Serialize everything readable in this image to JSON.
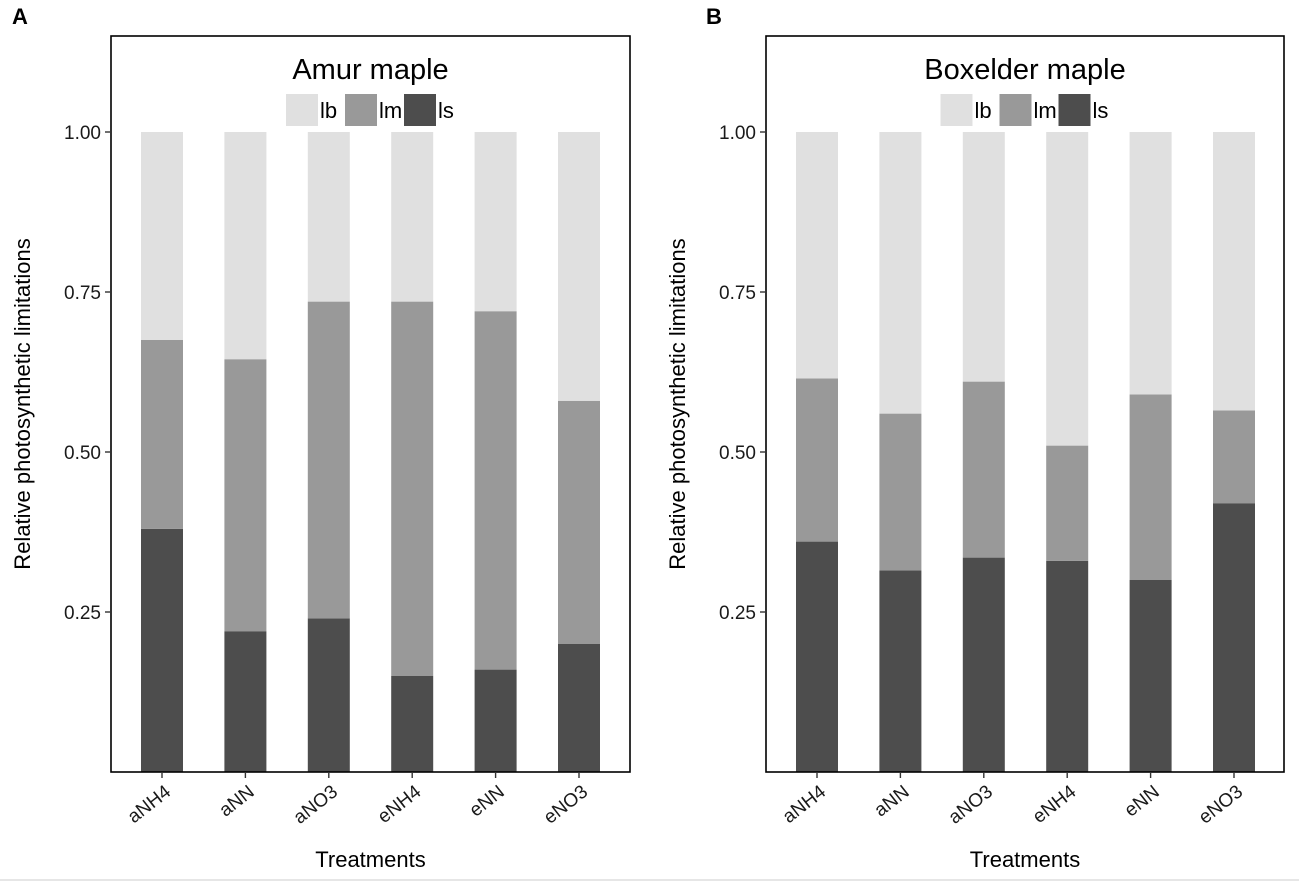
{
  "chart_data": [
    {
      "panel": "A",
      "type": "bar",
      "stacked": true,
      "title": "Amur maple",
      "xlabel": "Treatments",
      "ylabel": "Relative photosynthetic limitations",
      "ylim": [
        0,
        1.15
      ],
      "yticks": [
        "0.25",
        "0.50",
        "0.75",
        "1.00"
      ],
      "categories": [
        "aNH4",
        "aNN",
        "aNO3",
        "eNH4",
        "eNN",
        "eNO3"
      ],
      "series": [
        {
          "name": "ls",
          "color": "#4d4d4d",
          "values": [
            0.38,
            0.22,
            0.24,
            0.15,
            0.16,
            0.2
          ]
        },
        {
          "name": "lm",
          "color": "#999999",
          "values": [
            0.295,
            0.425,
            0.495,
            0.585,
            0.56,
            0.38
          ]
        },
        {
          "name": "lb",
          "color": "#e0e0e0",
          "values": [
            0.325,
            0.355,
            0.265,
            0.265,
            0.28,
            0.42
          ]
        }
      ],
      "legend": [
        "lb",
        "lm",
        "ls"
      ],
      "legend_position": "top-center",
      "grid": false
    },
    {
      "panel": "B",
      "type": "bar",
      "stacked": true,
      "title": "Boxelder maple",
      "xlabel": "Treatments",
      "ylabel": "Relative photosynthetic limitations",
      "ylim": [
        0,
        1.15
      ],
      "yticks": [
        "0.25",
        "0.50",
        "0.75",
        "1.00"
      ],
      "categories": [
        "aNH4",
        "aNN",
        "aNO3",
        "eNH4",
        "eNN",
        "eNO3"
      ],
      "series": [
        {
          "name": "ls",
          "color": "#4d4d4d",
          "values": [
            0.36,
            0.315,
            0.335,
            0.33,
            0.3,
            0.42
          ]
        },
        {
          "name": "lm",
          "color": "#999999",
          "values": [
            0.255,
            0.245,
            0.275,
            0.18,
            0.29,
            0.145
          ]
        },
        {
          "name": "lb",
          "color": "#e0e0e0",
          "values": [
            0.385,
            0.44,
            0.39,
            0.49,
            0.41,
            0.435
          ]
        }
      ],
      "legend": [
        "lb",
        "lm",
        "ls"
      ],
      "legend_position": "top-center",
      "grid": false
    }
  ]
}
